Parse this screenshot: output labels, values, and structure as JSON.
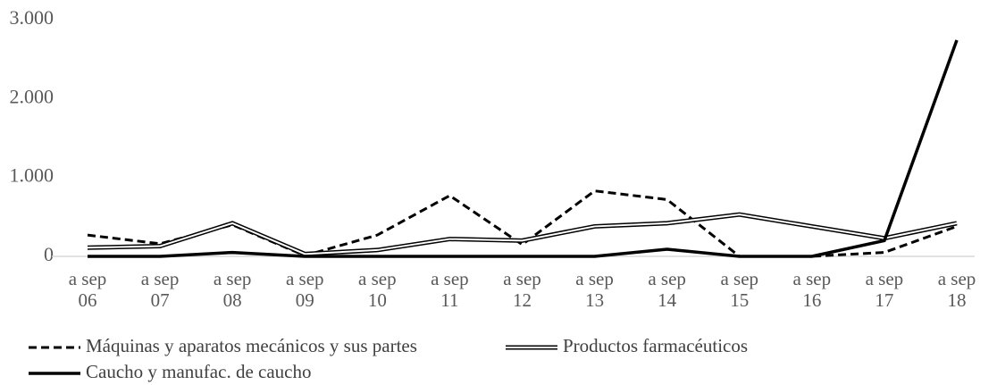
{
  "chart_data": {
    "type": "line",
    "categories": [
      "a sep 06",
      "a sep 07",
      "a sep 08",
      "a sep 09",
      "a sep 10",
      "a sep 11",
      "a sep 12",
      "a sep 13",
      "a sep 14",
      "a sep 15",
      "a sep 16",
      "a sep 17",
      "a sep 18"
    ],
    "series": [
      {
        "name": "Máquinas y aparatos mecánicos y sus partes",
        "color": "#000000",
        "style": "dashed",
        "values": [
          270,
          160,
          400,
          10,
          270,
          770,
          150,
          830,
          720,
          0,
          0,
          50,
          380
        ]
      },
      {
        "name": "Productos farmacéuticos",
        "color": "#000000",
        "style": "double",
        "values": [
          110,
          130,
          420,
          30,
          80,
          220,
          200,
          380,
          420,
          530,
          380,
          230,
          420
        ]
      },
      {
        "name": "Caucho y manufac. de caucho",
        "color": "#000000",
        "style": "solid",
        "values": [
          0,
          0,
          50,
          0,
          0,
          0,
          0,
          0,
          90,
          0,
          0,
          200,
          2740
        ]
      }
    ],
    "ylim": [
      0,
      3000
    ],
    "yticks": [
      0,
      {
        "value": 1000,
        "label": "1.000"
      },
      {
        "value": 2000,
        "label": "2.000"
      },
      {
        "value": 3000,
        "label": "3.000"
      }
    ],
    "grid": false
  }
}
